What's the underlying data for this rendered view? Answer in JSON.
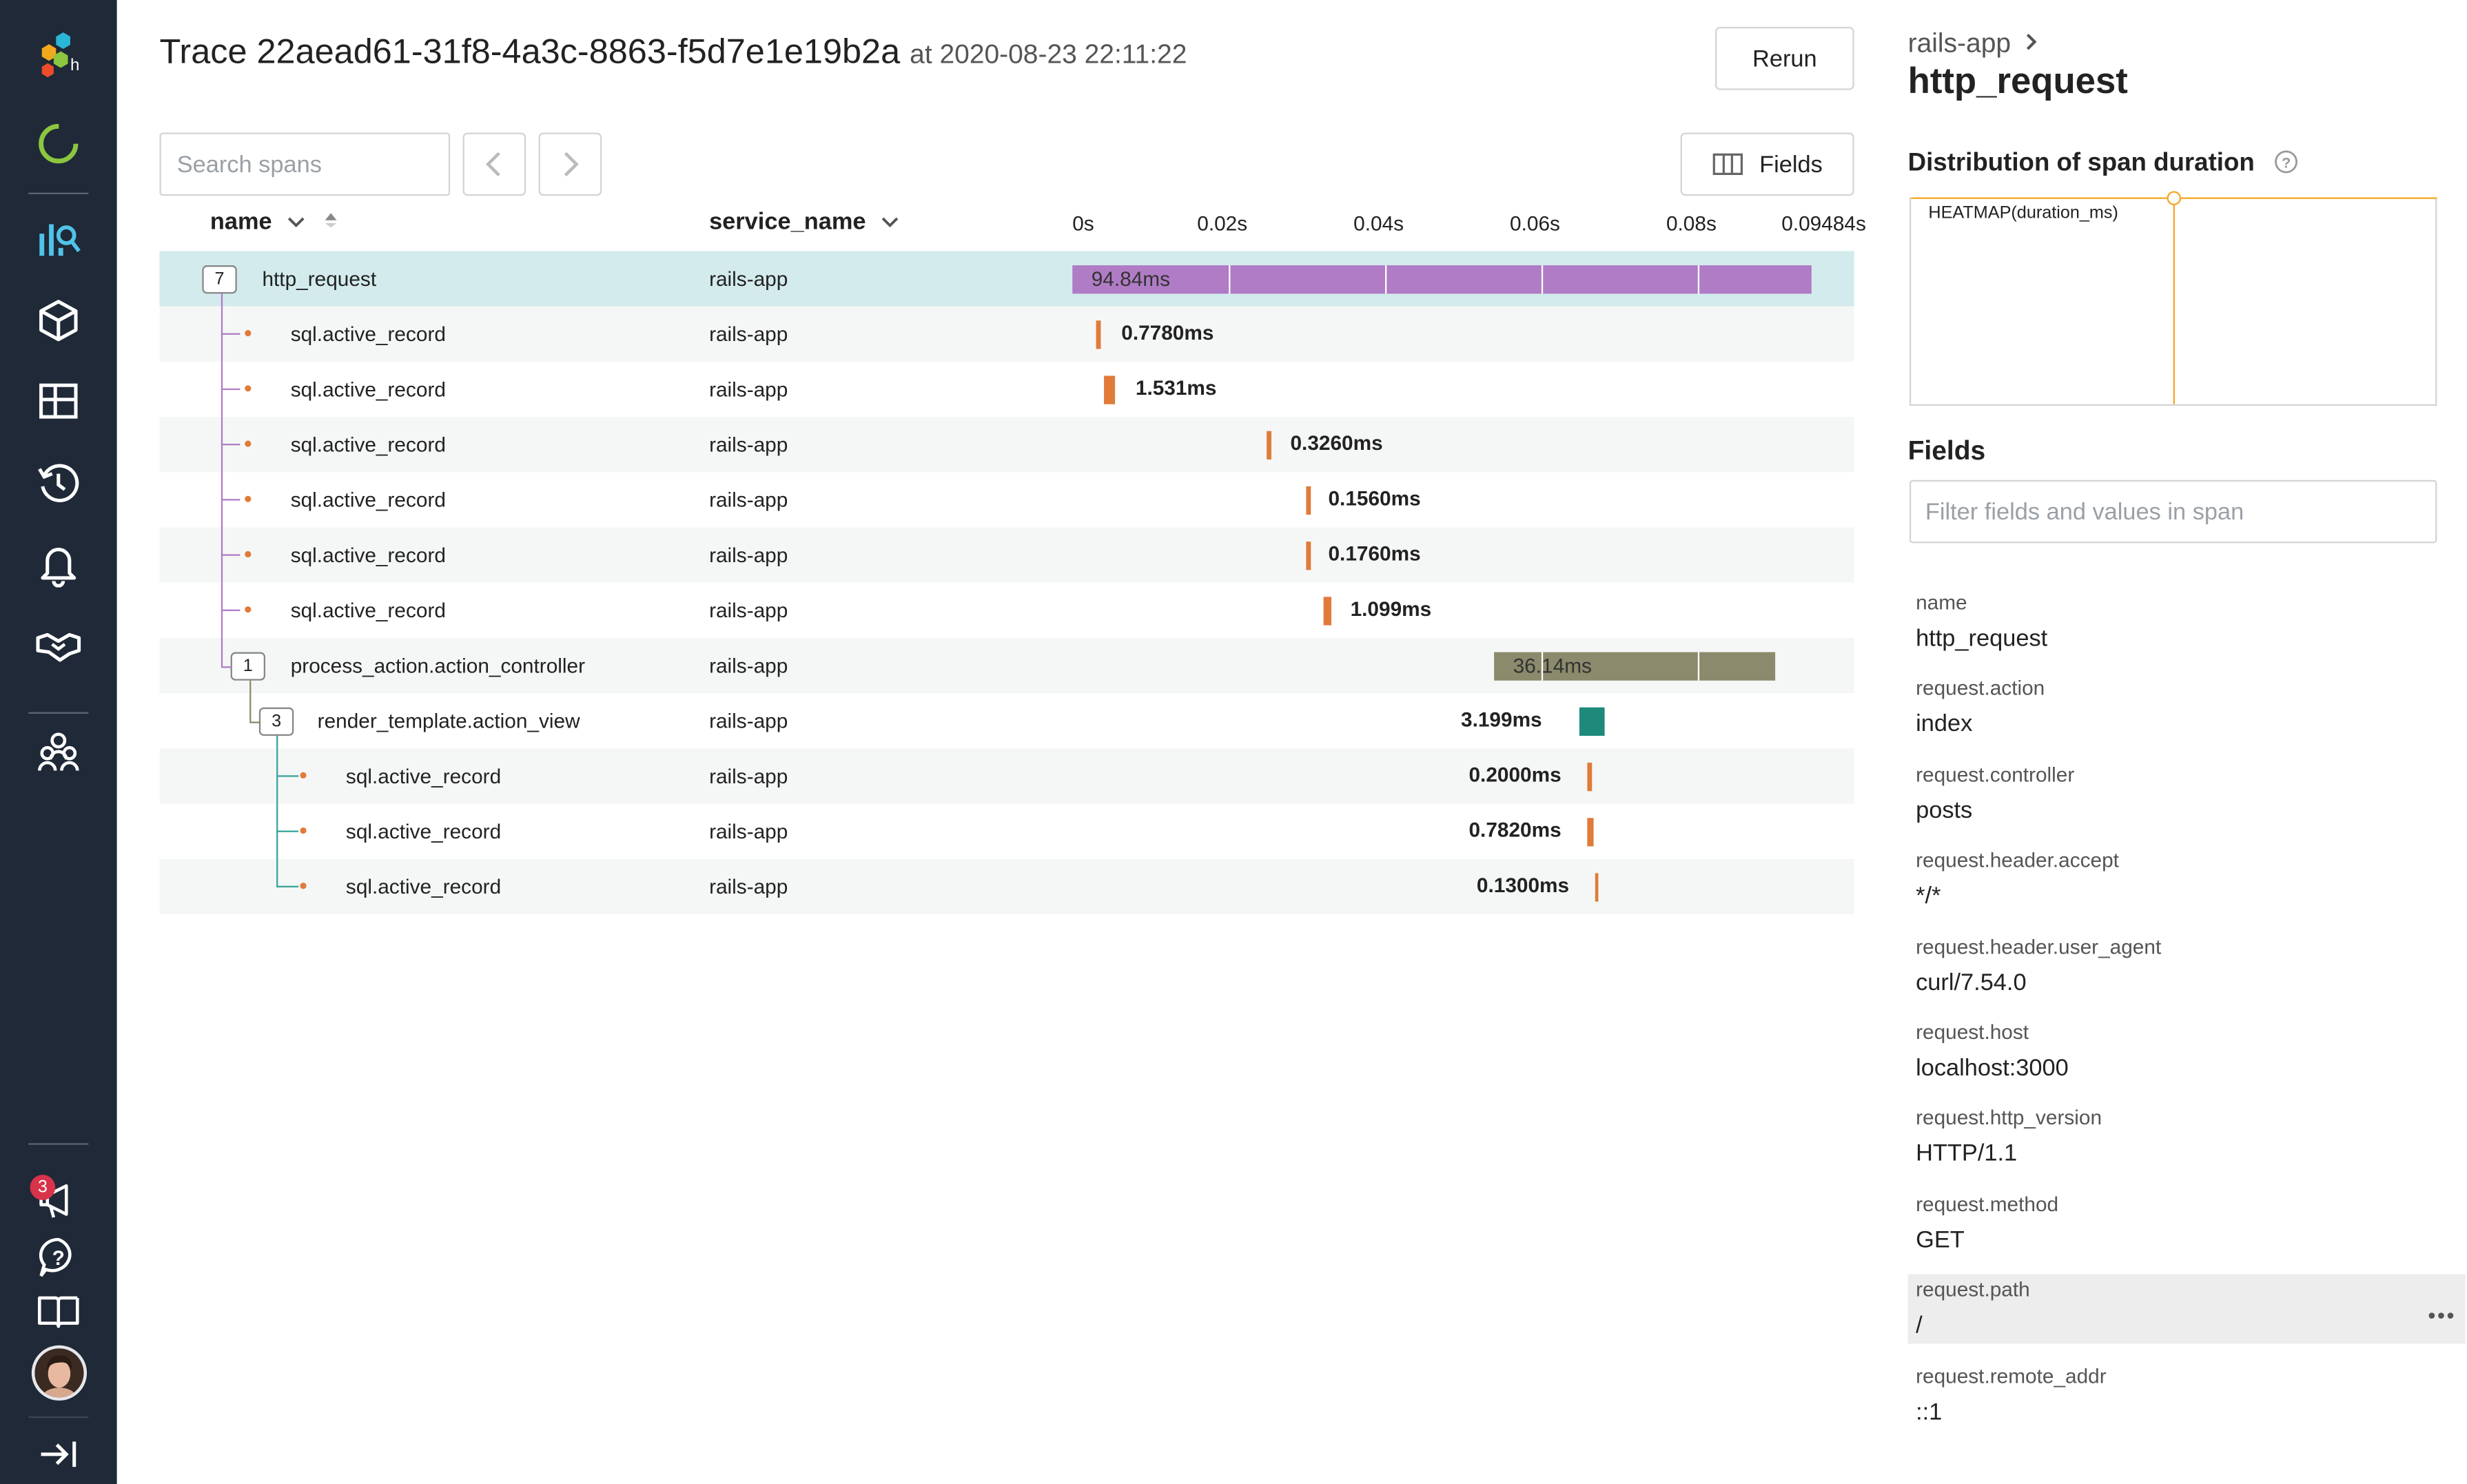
{
  "colors": {
    "sidebar": "#1f2937",
    "accent_selected_row": "#d3ebec",
    "root_bar": "#b07cc6",
    "sql_bar": "#e07b39",
    "controller_bar": "#8b8a6c",
    "view_bar": "#1e8a7b",
    "tree_line_purple": "#b07cc6",
    "tree_line_teal": "#3aa39a",
    "heatmap_line": "#f5a623"
  },
  "sidebar": {
    "icons": [
      "honeycomb-logo-icon",
      "loading-ring-icon",
      "query-chart-icon",
      "dataset-cube-icon",
      "boards-grid-icon",
      "history-clock-icon",
      "alerts-bell-icon",
      "integrations-handshake-icon",
      "team-people-icon",
      "announcements-megaphone-icon",
      "help-question-icon",
      "docs-book-icon",
      "user-avatar",
      "collapse-arrow-icon"
    ],
    "notification_count": "3"
  },
  "header": {
    "trace_title": "Trace 22aead61-31f8-4a3c-8863-f5d7e1e19b2a",
    "at_label": "at 2020-08-23 22:11:22",
    "rerun_label": "Rerun",
    "fields_label": "Fields"
  },
  "search": {
    "placeholder": "Search spans"
  },
  "table": {
    "columns": {
      "name": "name",
      "service": "service_name"
    },
    "ticks": [
      "0s",
      "0.02s",
      "0.04s",
      "0.06s",
      "0.08s",
      "0.09484s"
    ],
    "rows": [
      {
        "name": "http_request",
        "service": "rails-app",
        "duration": "94.84ms",
        "count": "7"
      },
      {
        "name": "sql.active_record",
        "service": "rails-app",
        "duration": "0.7780ms"
      },
      {
        "name": "sql.active_record",
        "service": "rails-app",
        "duration": "1.531ms"
      },
      {
        "name": "sql.active_record",
        "service": "rails-app",
        "duration": "0.3260ms"
      },
      {
        "name": "sql.active_record",
        "service": "rails-app",
        "duration": "0.1560ms"
      },
      {
        "name": "sql.active_record",
        "service": "rails-app",
        "duration": "0.1760ms"
      },
      {
        "name": "sql.active_record",
        "service": "rails-app",
        "duration": "1.099ms"
      },
      {
        "name": "process_action.action_controller",
        "service": "rails-app",
        "duration": "36.14ms",
        "count": "1"
      },
      {
        "name": "render_template.action_view",
        "service": "rails-app",
        "duration": "3.199ms",
        "count": "3"
      },
      {
        "name": "sql.active_record",
        "service": "rails-app",
        "duration": "0.2000ms"
      },
      {
        "name": "sql.active_record",
        "service": "rails-app",
        "duration": "0.7820ms"
      },
      {
        "name": "sql.active_record",
        "service": "rails-app",
        "duration": "0.1300ms"
      }
    ]
  },
  "panel": {
    "breadcrumb": "rails-app",
    "span_name": "http_request",
    "distribution_heading": "Distribution of span duration",
    "heatmap_label": "HEATMAP(duration_ms)",
    "fields_heading": "Fields",
    "filter_placeholder": "Filter fields and values in span",
    "fields": [
      {
        "key": "name",
        "value": "http_request"
      },
      {
        "key": "request.action",
        "value": "index"
      },
      {
        "key": "request.controller",
        "value": "posts"
      },
      {
        "key": "request.header.accept",
        "value": "*/*"
      },
      {
        "key": "request.header.user_agent",
        "value": "curl/7.54.0"
      },
      {
        "key": "request.host",
        "value": "localhost:3000"
      },
      {
        "key": "request.http_version",
        "value": "HTTP/1.1"
      },
      {
        "key": "request.method",
        "value": "GET"
      },
      {
        "key": "request.path",
        "value": "/"
      },
      {
        "key": "request.remote_addr",
        "value": "::1"
      }
    ]
  }
}
